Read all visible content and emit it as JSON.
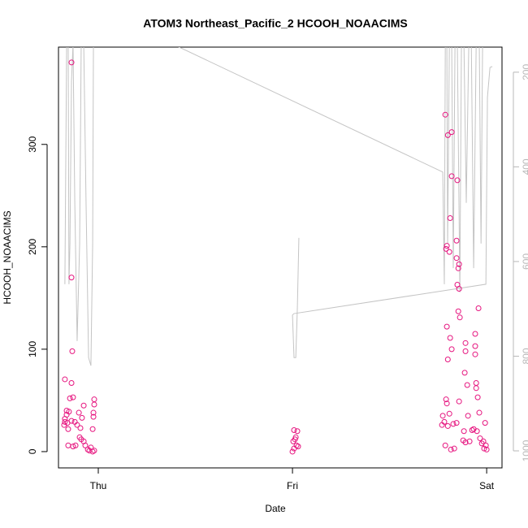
{
  "chart_data": {
    "type": "scatter",
    "title": "ATOM3 Northeast_Pacific_2 HCOOH_NOAACIMS",
    "xlabel": "Date",
    "ylabel": "HCOOH_NOAACIMS",
    "xlim": [
      -0.205,
      2.079
    ],
    "xticks": [
      {
        "value": 0,
        "label": "Thu"
      },
      {
        "value": 1,
        "label": "Fri"
      },
      {
        "value": 2,
        "label": "Sat"
      }
    ],
    "ylim": [
      -15.9,
      395
    ],
    "yticks": [
      0,
      100,
      200,
      300
    ],
    "y2lim": [
      1036,
      147
    ],
    "y2ticks": [
      200,
      400,
      600,
      800,
      1000
    ],
    "series": [
      {
        "type": "scatter",
        "color": "#e6157f",
        "x": [
          -0.172,
          -0.138,
          -0.138,
          -0.134,
          -0.138,
          -0.146,
          -0.13,
          -0.163,
          -0.151,
          -0.172,
          -0.159,
          -0.176,
          -0.155,
          -0.138,
          -0.121,
          -0.109,
          -0.1,
          -0.092,
          -0.084,
          -0.075,
          -0.096,
          -0.088,
          -0.075,
          -0.067,
          -0.054,
          -0.046,
          -0.038,
          -0.029,
          -0.025,
          -0.021,
          -0.021,
          -0.025,
          -0.021,
          -0.029,
          -0.155,
          -0.13,
          -0.117,
          -0.172,
          -0.163,
          1.008,
          1.017,
          1.025,
          1.004,
          1.013,
          1.021,
          1.029,
          1.0,
          1.008,
          1.787,
          1.8,
          1.82,
          1.82,
          1.849,
          1.812,
          1.795,
          1.791,
          1.808,
          1.845,
          1.845,
          1.858,
          1.854,
          1.849,
          1.858,
          1.854,
          1.862,
          1.958,
          1.795,
          1.812,
          1.82,
          1.8,
          1.941,
          1.941,
          1.941,
          1.891,
          1.891,
          1.887,
          1.9,
          1.946,
          1.946,
          1.954,
          1.791,
          1.795,
          1.858,
          1.774,
          1.808,
          1.782,
          1.8,
          1.828,
          1.845,
          1.904,
          1.962,
          1.992,
          1.77,
          1.787,
          1.816,
          1.833,
          1.879,
          1.891,
          1.912,
          1.933,
          1.95,
          1.966,
          1.975,
          1.983,
          1.996,
          1.987,
          2.0,
          1.925,
          1.883
        ],
        "values": [
          70.6,
          380,
          170,
          98,
          67,
          52,
          53,
          40,
          39,
          32,
          28,
          26,
          22,
          30,
          29,
          26,
          38,
          23,
          33,
          45,
          14,
          12,
          10,
          6,
          2,
          1,
          4,
          22,
          34,
          46,
          51,
          38,
          1,
          0,
          6,
          5,
          6,
          29,
          36,
          21,
          14,
          20,
          10,
          12,
          6,
          5,
          0,
          3,
          329,
          309,
          312,
          269,
          265,
          228,
          201,
          198,
          195,
          206,
          189,
          183,
          179,
          163,
          159,
          137,
          131,
          140,
          122,
          111,
          100,
          90,
          115,
          103,
          95,
          106,
          98,
          77,
          65,
          67,
          62,
          53,
          51,
          47,
          49,
          35,
          37,
          29,
          25,
          27,
          28,
          35,
          38,
          28,
          26,
          6,
          2,
          3,
          11,
          9,
          10,
          22,
          20,
          13,
          8,
          10,
          6,
          3,
          2,
          21,
          20
        ]
      },
      {
        "type": "line",
        "axis": "y2",
        "color": "#c4c4c4",
        "x": [
          -0.172,
          -0.163,
          -0.155,
          -0.151,
          -0.146,
          -0.138,
          -0.13,
          -0.121,
          -0.109,
          -0.096,
          -0.088,
          -0.075,
          -0.063,
          -0.05,
          -0.038,
          -0.029,
          -0.025,
          -0.021,
          1.774,
          1.782,
          1.787,
          1.795,
          1.799,
          1.808,
          1.82,
          1.828,
          1.837,
          1.849,
          1.862,
          1.87,
          1.883,
          1.895,
          1.908,
          1.921,
          1.933,
          1.946,
          1.962,
          1.971,
          1.979,
          1.987,
          null,
          1.033,
          1.025,
          1.017,
          1.008,
          1.0,
          1.008,
          1.996,
          2.004,
          2.017,
          2.029
        ],
        "values": [
          648,
          140,
          140,
          648,
          562,
          219,
          140,
          476,
          768,
          562,
          140,
          140,
          476,
          803,
          820,
          562,
          140,
          62,
          411,
          648,
          140,
          140,
          562,
          140,
          140,
          614,
          140,
          140,
          665,
          140,
          140,
          476,
          140,
          140,
          614,
          140,
          140,
          562,
          140,
          140,
          null,
          550,
          700,
          803,
          803,
          713,
          710,
          648,
          253,
          190,
          188
        ]
      }
    ]
  }
}
